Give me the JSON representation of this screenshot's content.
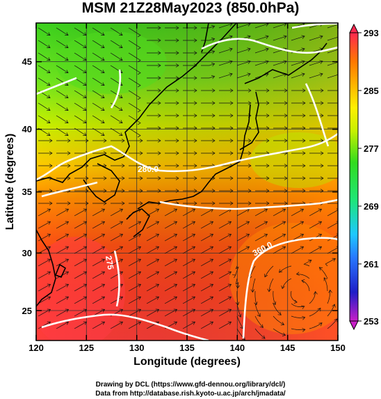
{
  "title": "MSM 21Z28May2023 (850.0hPa)",
  "x_axis": {
    "label": "Longitude (degrees)",
    "ticks": [
      "120",
      "125",
      "130",
      "135",
      "140",
      "145",
      "150"
    ]
  },
  "y_axis": {
    "label": "Latitude  (degrees)",
    "ticks": [
      "25",
      "30",
      "35",
      "40",
      "45"
    ]
  },
  "colorbar": {
    "ticks": [
      "293",
      "285",
      "277",
      "269",
      "261",
      "253"
    ],
    "min": 253,
    "max": 293,
    "colors": [
      "#c81ec8",
      "#1e1ec8",
      "#2878ff",
      "#1ec8ff",
      "#1ee678",
      "#32dc1e",
      "#78f01e",
      "#c8f000",
      "#fff000",
      "#ffb400",
      "#ff7800",
      "#ff3c1e",
      "#ff2850"
    ]
  },
  "contour_labels": [
    "280.0",
    "360.0",
    "275"
  ],
  "footer": {
    "line1": "Drawing by DCL (https://www.gfd-dennou.org/library/dcl/)",
    "line2": "Data from http://database.rish.kyoto-u.ac.jp/arch/jmadata/"
  },
  "map": {
    "lon_range": [
      120,
      150
    ],
    "lat_range": [
      22.5,
      48
    ],
    "field": "temperature (K) with wind streamlines"
  }
}
